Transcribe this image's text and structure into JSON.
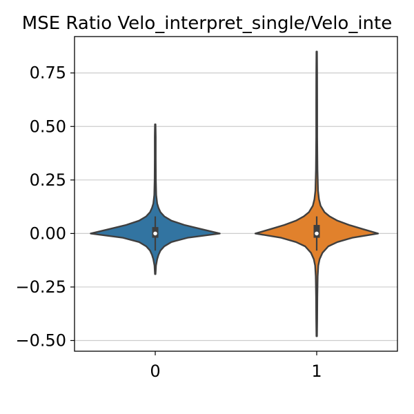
{
  "chart_data": {
    "type": "violin",
    "title": "MSE Ratio Velo_interpret_single/Velo_inte",
    "xlabel": "",
    "ylabel": "",
    "categories": [
      "0",
      "1"
    ],
    "ylim": [
      -0.55,
      0.92
    ],
    "yticks": [
      -0.5,
      -0.25,
      0.0,
      0.25,
      0.5,
      0.75
    ],
    "ytick_labels": [
      "−0.50",
      "−0.25",
      "0.00",
      "0.25",
      "0.50",
      "0.75"
    ],
    "grid": "horizontal",
    "colors": {
      "0": "#3274a1",
      "1": "#e1812c",
      "outline": "#3f3f3f",
      "grid": "#cccccc"
    },
    "violins": [
      {
        "category": "0",
        "min": -0.19,
        "max": 0.51,
        "q1": -0.02,
        "median": 0.0,
        "q3": 0.03,
        "whisker_low": -0.08,
        "whisker_high": 0.08,
        "density": [
          [
            -0.19,
            0.004
          ],
          [
            -0.15,
            0.012
          ],
          [
            -0.12,
            0.03
          ],
          [
            -0.1,
            0.05
          ],
          [
            -0.08,
            0.08
          ],
          [
            -0.06,
            0.14
          ],
          [
            -0.04,
            0.25
          ],
          [
            -0.02,
            0.5
          ],
          [
            0.0,
            1.0
          ],
          [
            0.02,
            0.72
          ],
          [
            0.04,
            0.45
          ],
          [
            0.06,
            0.25
          ],
          [
            0.08,
            0.14
          ],
          [
            0.1,
            0.08
          ],
          [
            0.12,
            0.05
          ],
          [
            0.14,
            0.03
          ],
          [
            0.18,
            0.015
          ],
          [
            0.25,
            0.01
          ],
          [
            0.35,
            0.008
          ],
          [
            0.45,
            0.007
          ],
          [
            0.51,
            0.004
          ]
        ]
      },
      {
        "category": "1",
        "min": -0.48,
        "max": 0.85,
        "q1": -0.02,
        "median": 0.0,
        "q3": 0.04,
        "whisker_low": -0.08,
        "whisker_high": 0.08,
        "density": [
          [
            -0.48,
            0.004
          ],
          [
            -0.4,
            0.007
          ],
          [
            -0.3,
            0.01
          ],
          [
            -0.2,
            0.015
          ],
          [
            -0.15,
            0.025
          ],
          [
            -0.12,
            0.045
          ],
          [
            -0.09,
            0.09
          ],
          [
            -0.06,
            0.18
          ],
          [
            -0.04,
            0.32
          ],
          [
            -0.02,
            0.55
          ],
          [
            0.0,
            0.95
          ],
          [
            0.02,
            0.72
          ],
          [
            0.04,
            0.5
          ],
          [
            0.06,
            0.32
          ],
          [
            0.08,
            0.2
          ],
          [
            0.1,
            0.12
          ],
          [
            0.13,
            0.06
          ],
          [
            0.16,
            0.035
          ],
          [
            0.2,
            0.02
          ],
          [
            0.3,
            0.012
          ],
          [
            0.45,
            0.008
          ],
          [
            0.6,
            0.007
          ],
          [
            0.75,
            0.006
          ],
          [
            0.85,
            0.004
          ]
        ]
      }
    ]
  }
}
